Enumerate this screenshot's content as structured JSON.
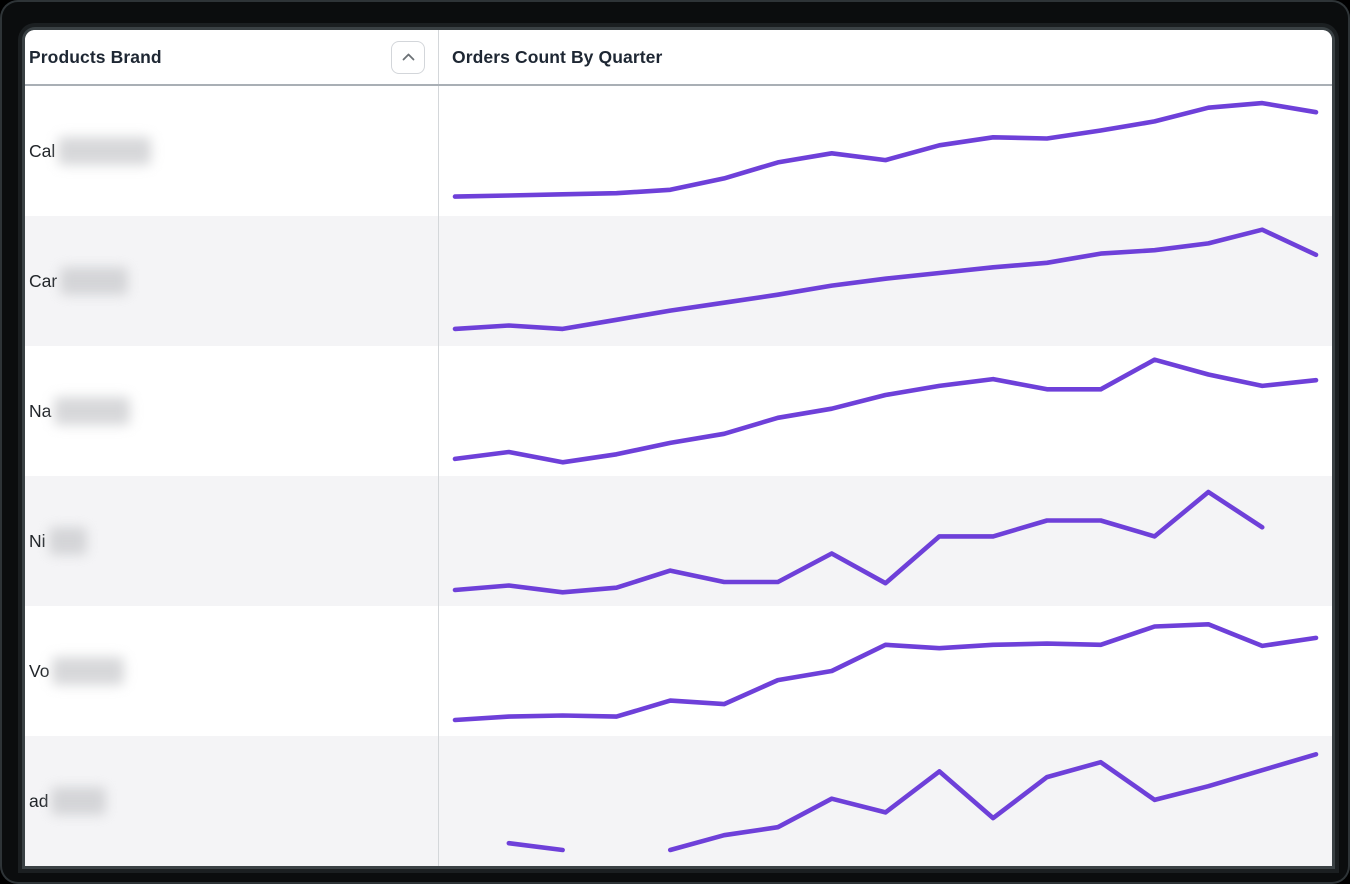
{
  "window": {
    "kind": "data-table-visualization"
  },
  "header": {
    "brand_column_label": "Products Brand",
    "orders_column_label": "Orders Count By Quarter",
    "sort_icon": "chevron-up-icon"
  },
  "colors": {
    "line": "#6e40d9",
    "row_alt_bg": "#f4f4f6",
    "row_bg": "#ffffff",
    "header_text": "#1e2733",
    "label_text": "#212529",
    "column_divider": "#d4d7da",
    "header_border": "#a9afb5",
    "frame": "#0b0d0e"
  },
  "rows": [
    {
      "brand_visible": "Cal",
      "redacted": true,
      "redact_width": 93
    },
    {
      "brand_visible": "Car",
      "redacted": true,
      "redact_width": 68
    },
    {
      "brand_visible": "Na",
      "redacted": true,
      "redact_width": 76
    },
    {
      "brand_visible": "Ni",
      "redacted": true,
      "redact_width": 38
    },
    {
      "brand_visible": "Vo",
      "redacted": true,
      "redact_width": 72
    },
    {
      "brand_visible": "ad",
      "redacted": true,
      "redact_width": 55
    }
  ],
  "chart_data": {
    "type": "line",
    "title": "Orders Count By Quarter",
    "xlabel": "",
    "ylabel": "",
    "x_points": 17,
    "x_unit": "quarters (evenly spaced, unlabeled)",
    "value_scale": "relative 0-100 per row (no axis ticks shown); null = missing quarter",
    "grid": false,
    "legend": false,
    "series": [
      {
        "name": "Cal (redacted)",
        "values": [
          10,
          11,
          12,
          13,
          16,
          26,
          40,
          48,
          42,
          55,
          62,
          61,
          68,
          76,
          88,
          92,
          84
        ]
      },
      {
        "name": "Car (redacted)",
        "values": [
          8,
          11,
          8,
          16,
          24,
          31,
          38,
          46,
          52,
          57,
          62,
          66,
          74,
          77,
          83,
          95,
          73
        ]
      },
      {
        "name": "Na (redacted)",
        "values": [
          8,
          14,
          5,
          12,
          22,
          30,
          44,
          52,
          64,
          72,
          78,
          69,
          69,
          95,
          82,
          72,
          77
        ]
      },
      {
        "name": "Ni (redacted)",
        "values": [
          7,
          11,
          5,
          9,
          24,
          14,
          14,
          39,
          13,
          54,
          54,
          68,
          68,
          54,
          93,
          62,
          null
        ]
      },
      {
        "name": "Vo (redacted)",
        "values": [
          7,
          10,
          11,
          10,
          24,
          21,
          42,
          50,
          73,
          70,
          73,
          74,
          73,
          89,
          91,
          72,
          79
        ]
      },
      {
        "name": "ad (redacted)",
        "values": [
          null,
          13,
          7,
          null,
          7,
          20,
          27,
          52,
          40,
          76,
          35,
          71,
          84,
          51,
          63,
          77,
          91
        ]
      }
    ]
  }
}
